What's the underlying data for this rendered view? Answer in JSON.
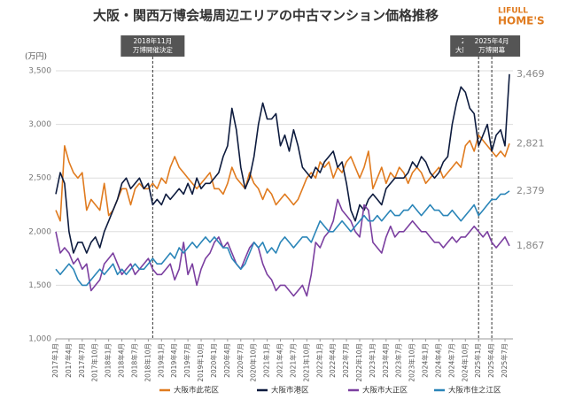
{
  "chart_data": {
    "type": "line",
    "title": "大阪・関西万博会場周辺エリアの中古マンション価格推移",
    "logo": [
      "LIFULL",
      "HOME'S"
    ],
    "y_unit": "(万円)",
    "categories": [
      "2017年1月",
      null,
      null,
      "2017年4月",
      null,
      null,
      "2017年7月",
      null,
      null,
      "2017年10月",
      null,
      null,
      "2018年1月",
      null,
      null,
      "2018年4月",
      null,
      null,
      "2018年7月",
      null,
      null,
      "2018年10月",
      null,
      null,
      "2019年1月",
      null,
      null,
      "2019年4月",
      null,
      null,
      "2019年7月",
      null,
      null,
      "2019年10月",
      null,
      null,
      "2020年1月",
      null,
      null,
      "2020年4月",
      null,
      null,
      "2020年7月",
      null,
      null,
      "2020年10月",
      null,
      null,
      "2021年1月",
      null,
      null,
      "2021年4月",
      null,
      null,
      "2021年7月",
      null,
      null,
      "2021年10月",
      null,
      null,
      "2022年1月",
      null,
      null,
      "2022年4月",
      null,
      null,
      "2022年7月",
      null,
      null,
      "2022年10月",
      null,
      null,
      "2023年1月",
      null,
      null,
      "2023年4月",
      null,
      null,
      "2023年7月",
      null,
      null,
      "2023年10月",
      null,
      null,
      "2024年1月",
      null,
      null,
      "2024年4月",
      null,
      null,
      "2024年7月",
      null,
      null,
      "2024年10月",
      null,
      null,
      "2025年1月",
      null,
      null,
      "2025年4月",
      null,
      null,
      "2025年7月",
      null
    ],
    "series": [
      {
        "name": "大阪市此花区",
        "color": "#e07b1f",
        "values": [
          2200,
          2100,
          2800,
          2650,
          2550,
          2500,
          2550,
          2200,
          2300,
          2250,
          2200,
          2450,
          2150,
          2200,
          2300,
          2400,
          2400,
          2250,
          2400,
          2450,
          2400,
          2400,
          2450,
          2400,
          2500,
          2450,
          2600,
          2700,
          2600,
          2550,
          2500,
          2450,
          2400,
          2450,
          2500,
          2550,
          2400,
          2400,
          2350,
          2450,
          2600,
          2500,
          2450,
          2400,
          2550,
          2450,
          2400,
          2300,
          2400,
          2350,
          2250,
          2300,
          2350,
          2300,
          2250,
          2300,
          2400,
          2500,
          2550,
          2500,
          2650,
          2600,
          2650,
          2500,
          2600,
          2550,
          2650,
          2700,
          2600,
          2500,
          2600,
          2750,
          2400,
          2500,
          2600,
          2450,
          2550,
          2500,
          2600,
          2550,
          2450,
          2550,
          2600,
          2550,
          2450,
          2500,
          2550,
          2600,
          2500,
          2550,
          2600,
          2650,
          2600,
          2800,
          2850,
          2750,
          2900,
          2850,
          2800,
          2750,
          2700,
          2750,
          2700,
          2821
        ],
        "value_labels": [
          null,
          null,
          null,
          null,
          null,
          null,
          null,
          null,
          null,
          null,
          null,
          null,
          null,
          null,
          null,
          null,
          null,
          null,
          null,
          null,
          null,
          null,
          null,
          null,
          null,
          null,
          null,
          null,
          null,
          null,
          null,
          null,
          null,
          null,
          null,
          null,
          null,
          null,
          null,
          null,
          null,
          null,
          null,
          null,
          null,
          null,
          null,
          null,
          null,
          null,
          null,
          null,
          null,
          null,
          null,
          null,
          null,
          null,
          null,
          null,
          null,
          null,
          null,
          null,
          null,
          null,
          null,
          null,
          null,
          null,
          null,
          null,
          null,
          null,
          null,
          null,
          null,
          null,
          null,
          null,
          null,
          null,
          null,
          null,
          null,
          null,
          null,
          null,
          null,
          null,
          null,
          null,
          null,
          null,
          null,
          null,
          null,
          null,
          null,
          null,
          null,
          null,
          null,
          "2,821"
        ]
      },
      {
        "name": "大阪市港区",
        "color": "#0d1b3e",
        "values": [
          2350,
          2550,
          2450,
          2000,
          1800,
          1900,
          1900,
          1800,
          1900,
          1950,
          1850,
          2000,
          2100,
          2200,
          2300,
          2450,
          2500,
          2400,
          2450,
          2500,
          2400,
          2450,
          2250,
          2300,
          2250,
          2350,
          2300,
          2350,
          2400,
          2350,
          2450,
          2350,
          2500,
          2400,
          2450,
          2450,
          2500,
          2550,
          2700,
          2800,
          3150,
          2950,
          2600,
          2400,
          2500,
          2700,
          3000,
          3200,
          3050,
          3050,
          3100,
          2800,
          2900,
          2750,
          2950,
          2800,
          2600,
          2550,
          2500,
          2600,
          2550,
          2650,
          2700,
          2750,
          2600,
          2650,
          2450,
          2200,
          2100,
          2250,
          2200,
          2300,
          2350,
          2300,
          2250,
          2400,
          2450,
          2500,
          2500,
          2500,
          2550,
          2650,
          2600,
          2700,
          2650,
          2550,
          2500,
          2550,
          2650,
          2700,
          3000,
          3200,
          3350,
          3300,
          3150,
          3100,
          2800,
          2900,
          3000,
          2750,
          2900,
          2950,
          2800,
          3469
        ],
        "value_labels": [
          null,
          null,
          null,
          null,
          null,
          null,
          null,
          null,
          null,
          null,
          null,
          null,
          null,
          null,
          null,
          null,
          null,
          null,
          null,
          null,
          null,
          null,
          null,
          null,
          null,
          null,
          null,
          null,
          null,
          null,
          null,
          null,
          null,
          null,
          null,
          null,
          null,
          null,
          null,
          null,
          null,
          null,
          null,
          null,
          null,
          null,
          null,
          null,
          null,
          null,
          null,
          null,
          null,
          null,
          null,
          null,
          null,
          null,
          null,
          null,
          null,
          null,
          null,
          null,
          null,
          null,
          null,
          null,
          null,
          null,
          null,
          null,
          null,
          null,
          null,
          null,
          null,
          null,
          null,
          null,
          null,
          null,
          null,
          null,
          null,
          null,
          null,
          null,
          null,
          null,
          null,
          null,
          null,
          null,
          null,
          null,
          null,
          null,
          null,
          null,
          null,
          null,
          null,
          "3,469"
        ]
      },
      {
        "name": "大阪市大正区",
        "color": "#7b3fa0",
        "values": [
          2000,
          1800,
          1850,
          1800,
          1700,
          1750,
          1650,
          1700,
          1450,
          1500,
          1550,
          1700,
          1750,
          1800,
          1700,
          1600,
          1650,
          1700,
          1600,
          1650,
          1700,
          1750,
          1650,
          1600,
          1600,
          1650,
          1700,
          1550,
          1650,
          1900,
          1600,
          1700,
          1500,
          1650,
          1750,
          1800,
          1900,
          1950,
          1850,
          1900,
          1800,
          1700,
          1650,
          1750,
          1850,
          1900,
          1850,
          1700,
          1600,
          1550,
          1450,
          1500,
          1500,
          1450,
          1400,
          1450,
          1500,
          1400,
          1600,
          1900,
          1850,
          1950,
          2000,
          2100,
          2300,
          2200,
          2150,
          2100,
          2000,
          1950,
          2250,
          2200,
          1900,
          1850,
          1800,
          1950,
          2050,
          1950,
          2000,
          2000,
          2050,
          2100,
          2050,
          2000,
          2000,
          1950,
          1900,
          1900,
          1850,
          1900,
          1950,
          1900,
          1950,
          1950,
          2000,
          2050,
          2000,
          1950,
          2000,
          1900,
          1850,
          1900,
          1950,
          1867
        ],
        "value_labels": [
          null,
          null,
          null,
          null,
          null,
          null,
          null,
          null,
          null,
          null,
          null,
          null,
          null,
          null,
          null,
          null,
          null,
          null,
          null,
          null,
          null,
          null,
          null,
          null,
          null,
          null,
          null,
          null,
          null,
          null,
          null,
          null,
          null,
          null,
          null,
          null,
          null,
          null,
          null,
          null,
          null,
          null,
          null,
          null,
          null,
          null,
          null,
          null,
          null,
          null,
          null,
          null,
          null,
          null,
          null,
          null,
          null,
          null,
          null,
          null,
          null,
          null,
          null,
          null,
          null,
          null,
          null,
          null,
          null,
          null,
          null,
          null,
          null,
          null,
          null,
          null,
          null,
          null,
          null,
          null,
          null,
          null,
          null,
          null,
          null,
          null,
          null,
          null,
          null,
          null,
          null,
          null,
          null,
          null,
          null,
          null,
          null,
          null,
          null,
          null,
          null,
          null,
          null,
          "1,867"
        ]
      },
      {
        "name": "大阪市住之江区",
        "color": "#2a85b8",
        "values": [
          1650,
          1600,
          1650,
          1700,
          1650,
          1550,
          1500,
          1500,
          1550,
          1600,
          1650,
          1600,
          1650,
          1700,
          1600,
          1650,
          1600,
          1650,
          1700,
          1650,
          1650,
          1700,
          1750,
          1700,
          1700,
          1750,
          1800,
          1750,
          1850,
          1800,
          1850,
          1900,
          1850,
          1900,
          1950,
          1900,
          1950,
          1900,
          1850,
          1850,
          1750,
          1700,
          1650,
          1700,
          1800,
          1900,
          1850,
          1900,
          1800,
          1850,
          1800,
          1900,
          1950,
          1900,
          1850,
          1900,
          1950,
          1950,
          1900,
          2000,
          2100,
          2050,
          2000,
          2000,
          2050,
          2100,
          2050,
          2000,
          2050,
          2100,
          2150,
          2100,
          2100,
          2150,
          2100,
          2150,
          2200,
          2150,
          2150,
          2200,
          2200,
          2250,
          2200,
          2150,
          2200,
          2250,
          2200,
          2200,
          2150,
          2150,
          2200,
          2150,
          2100,
          2150,
          2200,
          2250,
          2150,
          2200,
          2250,
          2300,
          2300,
          2350,
          2350,
          2379
        ],
        "value_labels": [
          null,
          null,
          null,
          null,
          null,
          null,
          null,
          null,
          null,
          null,
          null,
          null,
          null,
          null,
          null,
          null,
          null,
          null,
          null,
          null,
          null,
          null,
          null,
          null,
          null,
          null,
          null,
          null,
          null,
          null,
          null,
          null,
          null,
          null,
          null,
          null,
          null,
          null,
          null,
          null,
          null,
          null,
          null,
          null,
          null,
          null,
          null,
          null,
          null,
          null,
          null,
          null,
          null,
          null,
          null,
          null,
          null,
          null,
          null,
          null,
          null,
          null,
          null,
          null,
          null,
          null,
          null,
          null,
          null,
          null,
          null,
          null,
          null,
          null,
          null,
          null,
          null,
          null,
          null,
          null,
          null,
          null,
          null,
          null,
          null,
          null,
          null,
          null,
          null,
          null,
          null,
          null,
          null,
          null,
          null,
          null,
          null,
          null,
          null,
          null,
          null,
          null,
          null,
          "2,379"
        ]
      }
    ],
    "ylim": [
      1000,
      3500
    ],
    "yticks": [
      {
        "value": 1000,
        "label": "1,000"
      },
      {
        "value": 1500,
        "label": "1,500"
      },
      {
        "value": 2000,
        "label": "2,000"
      },
      {
        "value": 2500,
        "label": "2,500"
      },
      {
        "value": 3000,
        "label": "3,000"
      },
      {
        "value": 3500,
        "label": "3,500"
      }
    ],
    "grid": true,
    "annotations": [
      {
        "lines": [
          "2018年11月",
          "万博開催決定"
        ]
      },
      {
        "lines": [
          "2025年1月",
          "大阪メトロ延伸"
        ]
      },
      {
        "lines": [
          "2025年4月",
          "万博開幕"
        ]
      }
    ]
  }
}
